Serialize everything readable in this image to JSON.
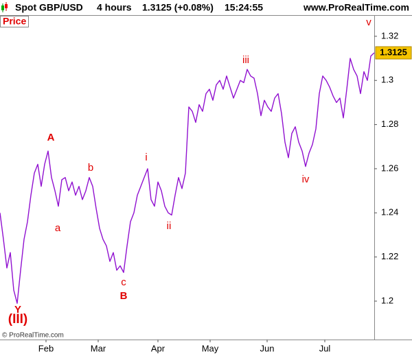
{
  "header": {
    "instrument": "Spot GBP/USD",
    "interval": "4 hours",
    "quote": "1.3125 (+0.08%)",
    "time": "15:24:55",
    "site": "www.ProRealTime.com"
  },
  "footer": "© ProRealTime.com",
  "chart_data": {
    "type": "line",
    "panel_label": "Price",
    "series": [
      {
        "name": "GBP/USD",
        "color": "#9010d0",
        "values": [
          1.24,
          1.228,
          1.215,
          1.222,
          1.205,
          1.199,
          1.214,
          1.228,
          1.236,
          1.248,
          1.258,
          1.262,
          1.252,
          1.262,
          1.268,
          1.256,
          1.25,
          1.243,
          1.255,
          1.256,
          1.25,
          1.254,
          1.248,
          1.252,
          1.246,
          1.25,
          1.256,
          1.252,
          1.242,
          1.233,
          1.228,
          1.225,
          1.218,
          1.222,
          1.214,
          1.216,
          1.213,
          1.225,
          1.236,
          1.24,
          1.248,
          1.252,
          1.256,
          1.26,
          1.246,
          1.243,
          1.254,
          1.25,
          1.243,
          1.24,
          1.239,
          1.248,
          1.256,
          1.251,
          1.258,
          1.288,
          1.286,
          1.281,
          1.289,
          1.286,
          1.294,
          1.296,
          1.291,
          1.298,
          1.3,
          1.296,
          1.302,
          1.297,
          1.292,
          1.296,
          1.3,
          1.299,
          1.305,
          1.302,
          1.301,
          1.294,
          1.284,
          1.291,
          1.288,
          1.286,
          1.292,
          1.294,
          1.285,
          1.272,
          1.265,
          1.276,
          1.279,
          1.272,
          1.268,
          1.261,
          1.267,
          1.271,
          1.278,
          1.294,
          1.302,
          1.3,
          1.297,
          1.293,
          1.29,
          1.292,
          1.283,
          1.296,
          1.31,
          1.305,
          1.302,
          1.294,
          1.304,
          1.3,
          1.311,
          1.3125
        ]
      }
    ],
    "xlim": [
      0,
      109
    ],
    "xticks": [
      {
        "value": 13.4,
        "label": "Feb"
      },
      {
        "value": 28.6,
        "label": "Mar"
      },
      {
        "value": 46,
        "label": "Apr"
      },
      {
        "value": 61.2,
        "label": "May"
      },
      {
        "value": 77.8,
        "label": "Jun"
      },
      {
        "value": 94.6,
        "label": "Jul"
      }
    ],
    "ylim": [
      1.1826,
      1.3296
    ],
    "yticks": [
      1.2,
      1.22,
      1.24,
      1.26,
      1.28,
      1.3,
      1.32
    ],
    "grid": false,
    "annotations": [
      "A",
      "a",
      "b",
      "B",
      "c",
      "i",
      "ii",
      "iii",
      "iv",
      "v",
      "Y",
      "(III)"
    ]
  }
}
